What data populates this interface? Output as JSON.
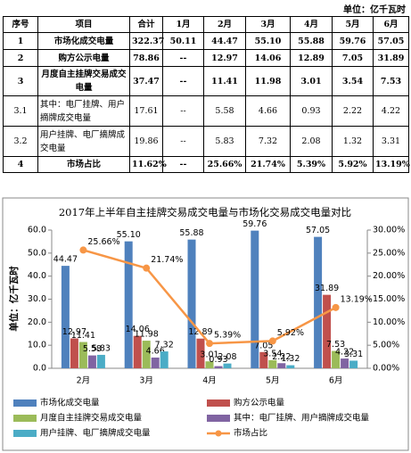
{
  "unit": "单位：亿千瓦时",
  "table": {
    "header": [
      "序号",
      "项目",
      "合计",
      "1月",
      "2月",
      "3月",
      "4月",
      "5月",
      "6月"
    ],
    "rows": [
      [
        "1",
        "市场化成交电量",
        "322.37",
        "50.11",
        "44.47",
        "55.10",
        "55.88",
        "59.76",
        "57.05"
      ],
      [
        "2",
        "购方公示电量",
        "78.86",
        "--",
        "12.97",
        "14.06",
        "12.89",
        "7.05",
        "31.89"
      ],
      [
        "3",
        "月度自主挂牌交易成交电量",
        "37.47",
        "--",
        "11.41",
        "11.98",
        "3.01",
        "3.54",
        "7.53"
      ],
      [
        "3.1",
        "其中：电厂挂牌、用户摘牌成交电量",
        "17.61",
        "--",
        "5.58",
        "4.66",
        "0.93",
        "2.22",
        "4.22"
      ],
      [
        "3.2",
        "用户挂牌、电厂摘牌成交电量",
        "19.86",
        "--",
        "5.83",
        "7.32",
        "2.08",
        "1.32",
        "3.31"
      ],
      [
        "4",
        "市场占比",
        "11.62%",
        "--",
        "25.66%",
        "21.74%",
        "5.39%",
        "5.92%",
        "13.19%"
      ]
    ]
  },
  "chart_data": {
    "type": "bar",
    "title": "2017年上半年自主挂牌交易成交电量与市场化交易成交电量对比",
    "y_label": "单位：亿千瓦时",
    "categories": [
      "2月",
      "3月",
      "4月",
      "5月",
      "6月"
    ],
    "ylim": [
      0,
      60
    ],
    "yticks": [
      {
        "value": 0,
        "label": "0.0"
      },
      {
        "value": 10,
        "label": "10.0"
      },
      {
        "value": 20,
        "label": "20.0"
      },
      {
        "value": 30,
        "label": "30.0"
      },
      {
        "value": 40,
        "label": "40.0"
      },
      {
        "value": 50,
        "label": "50.0"
      },
      {
        "value": 60,
        "label": "60.0"
      }
    ],
    "y2lim": [
      0,
      30
    ],
    "y2ticks": [
      {
        "value": 0,
        "label": "0.00%"
      },
      {
        "value": 5,
        "label": "5.00%"
      },
      {
        "value": 10,
        "label": "10.00%"
      },
      {
        "value": 15,
        "label": "15.00%"
      },
      {
        "value": 20,
        "label": "20.00%"
      },
      {
        "value": 25,
        "label": "25.00%"
      },
      {
        "value": 30,
        "label": "30.00%"
      }
    ],
    "grid": false,
    "series": [
      {
        "name": "市场化成交电量",
        "color": "#4f81bd",
        "values": [
          44.47,
          55.1,
          55.88,
          59.76,
          57.05
        ],
        "value_labels": [
          "44.47",
          "55.10",
          "55.88",
          "59.76",
          "57.05"
        ]
      },
      {
        "name": "购方公示电量",
        "color": "#c0504d",
        "values": [
          12.97,
          14.06,
          12.89,
          7.05,
          31.89
        ],
        "value_labels": [
          "12.97",
          "14.06",
          "12.89",
          "7.05",
          "31.89"
        ]
      },
      {
        "name": "月度自主挂牌交易成交电量",
        "color": "#9bbb59",
        "values": [
          11.41,
          11.98,
          3.01,
          3.54,
          7.53
        ],
        "value_labels": [
          "11.41",
          "11.98",
          "3.01",
          "3.54",
          "7.53"
        ]
      },
      {
        "name": "其中：电厂挂牌、用户摘牌成交电量",
        "color": "#8064a2",
        "values": [
          5.58,
          4.66,
          0.93,
          2.22,
          4.22
        ],
        "value_labels": [
          "5.58",
          "4.66",
          "0.93",
          "2.22",
          "4.22"
        ]
      },
      {
        "name": "用户挂牌、电厂摘牌成交电量",
        "color": "#4bacc6",
        "values": [
          5.83,
          7.32,
          2.08,
          1.32,
          3.31
        ],
        "value_labels": [
          "5.83",
          "7.32",
          "2.08",
          "1.32",
          "3.31"
        ]
      },
      {
        "name": "市场占比",
        "color": "#f79646",
        "type": "line",
        "axis": "y2",
        "values": [
          25.66,
          21.74,
          5.39,
          5.92,
          13.19
        ],
        "value_labels": [
          "25.66%",
          "21.74%",
          "5.39%",
          "5.92%",
          "13.19%"
        ]
      }
    ]
  }
}
